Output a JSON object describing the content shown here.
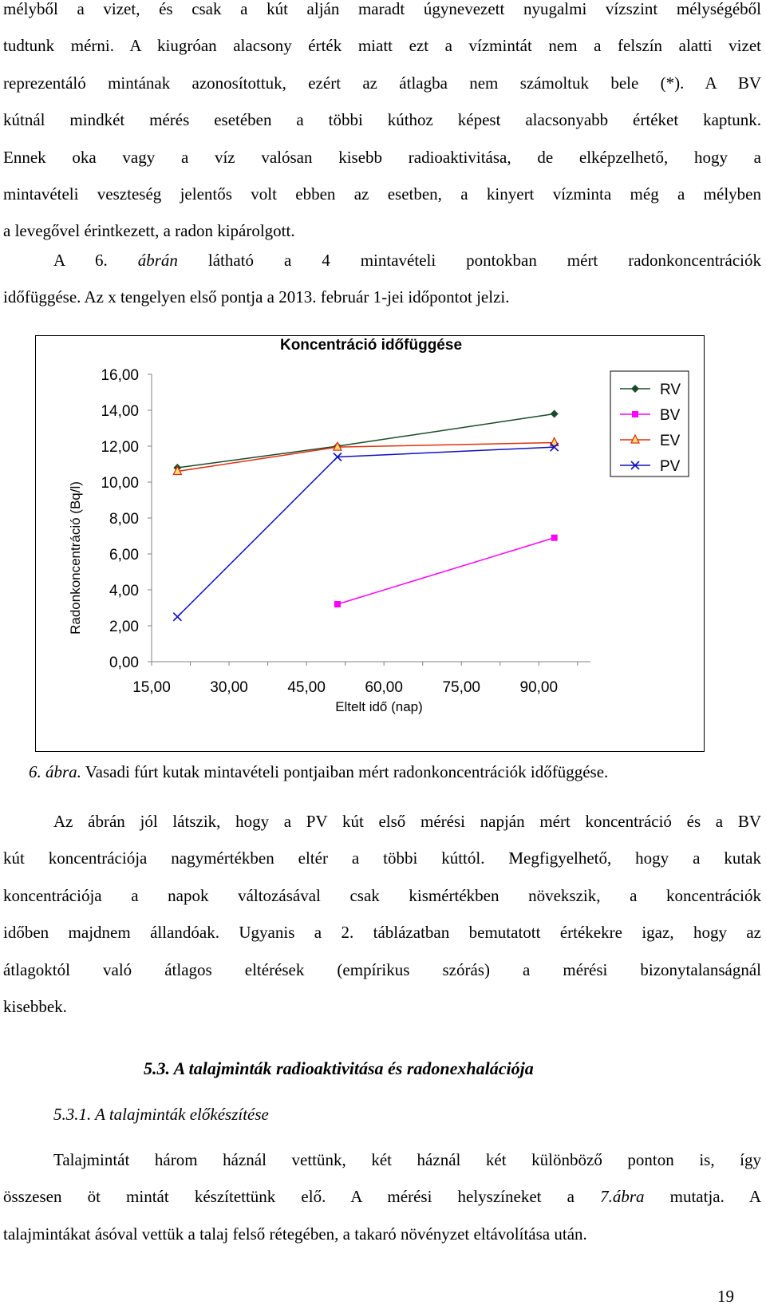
{
  "intro_lines": [
    "mélyből a vizet, és csak a kút alján maradt úgynevezett nyugalmi vízszint mélységéből",
    "tudtunk mérni. A kiugróan alacsony érték miatt ezt a vízmintát nem a felszín alatti vizet",
    "reprezentáló mintának azonosítottuk, ezért az átlagba nem számoltuk bele (*). A BV",
    "kútnál mindkét mérés esetében a többi kúthoz képest alacsonyabb értéket kaptunk.",
    "Ennek oka vagy a víz valósan kisebb radioaktivitása, de elképzelhető, hogy a",
    "mintavételi veszteség jelentős volt ebben az esetben, a kinyert vízminta még a mélyben",
    "a levegővel érintkezett, a radon kipárolgott."
  ],
  "para2_lines": [
    [
      "A 6. ",
      "ábrán",
      " látható a 4 mintavételi pontokban mért radonkoncentrációk"
    ],
    [
      "időfüggése. Az x tengelyen első pontja a 2013. február 1-jei időpontot jelzi.",
      "",
      ""
    ]
  ],
  "chart_data": {
    "type": "line",
    "title": "Koncentráció időfüggése",
    "xlabel": "Eltelt idő (nap)",
    "ylabel": "Radonkoncentráció (Bq/l)",
    "xlim": [
      15,
      100
    ],
    "ylim": [
      0,
      16
    ],
    "x_ticks": [
      "15,00",
      "30,00",
      "45,00",
      "60,00",
      "75,00",
      "90,00"
    ],
    "y_ticks": [
      "0,00",
      "2,00",
      "4,00",
      "6,00",
      "8,00",
      "10,00",
      "12,00",
      "14,00",
      "16,00"
    ],
    "legend_position": "right",
    "series": [
      {
        "name": "RV",
        "color": "#1a4a2a",
        "marker": "diamond",
        "x": [
          20,
          51,
          93
        ],
        "y": [
          10.8,
          12.0,
          13.8
        ]
      },
      {
        "name": "BV",
        "color": "#ff00ff",
        "marker": "square",
        "x": [
          51,
          93
        ],
        "y": [
          3.2,
          6.9
        ]
      },
      {
        "name": "EV",
        "color": "#e03010",
        "marker": "triangle",
        "x": [
          20,
          51,
          93
        ],
        "y": [
          10.6,
          11.95,
          12.2
        ]
      },
      {
        "name": "PV",
        "color": "#1010c0",
        "marker": "x",
        "x": [
          20,
          51,
          93
        ],
        "y": [
          2.5,
          11.4,
          11.95
        ]
      }
    ]
  },
  "caption": {
    "label": "6. ábra.",
    "text": " Vasadi fúrt kutak mintavételi pontjaiban mért radonkoncentrációk időfüggése."
  },
  "para3_lines": [
    "Az ábrán jól látszik, hogy a PV kút első mérési napján mért koncentráció és a BV",
    "kút koncentrációja nagymértékben eltér a többi kúttól. Megfigyelhető, hogy a kutak",
    "koncentrációja a napok változásával csak kismértékben növekszik, a koncentrációk",
    "időben majdnem állandóak. Ugyanis a 2. táblázatban bemutatott értékekre igaz, hogy az",
    "átlagoktól való átlagos eltérések (empírikus szórás) a mérési bizonytalanságnál",
    "kisebbek."
  ],
  "heading1": "5.3. A talajminták radioaktivitása és radonexhalációja",
  "heading2": "5.3.1. A talajminták előkészítése",
  "para4_lines": [
    [
      "Talajmintát három háznál vettünk, két háznál két különböző ponton is, így",
      "",
      ""
    ],
    [
      "összesen öt mintát készítettünk elő. A mérési helyszíneket a ",
      "7.ábra",
      " mutatja. A"
    ],
    [
      "talajmintákat ásóval vettük a talaj felső rétegében, a takaró növényzet eltávolítása után.",
      "",
      ""
    ]
  ],
  "page_number": "19"
}
